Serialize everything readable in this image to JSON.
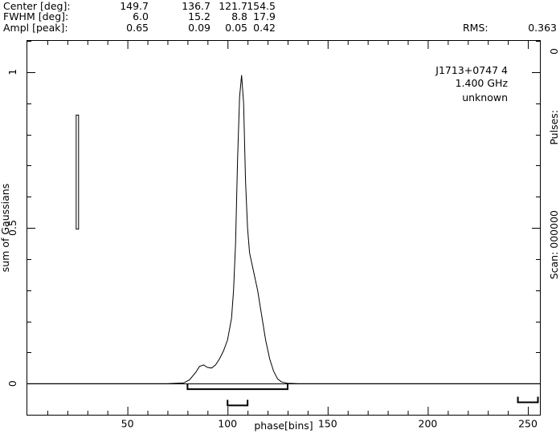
{
  "header": {
    "rows": [
      {
        "label": "Center [deg]:",
        "values": [
          "149.7",
          "136.7",
          "121.7",
          "154.5"
        ]
      },
      {
        "label": "FWHM  [deg]:",
        "values": [
          "6.0",
          "15.2",
          "8.8",
          "17.9"
        ]
      },
      {
        "label": "Ampl  [peak]:",
        "values": [
          "0.65",
          "0.09",
          "0.05",
          "0.42"
        ]
      }
    ],
    "rms_label": "RMS:",
    "rms_value": "0.363"
  },
  "annotation": {
    "lines": [
      "J1713+0747 4",
      "1.400 GHz",
      "unknown"
    ]
  },
  "right_label": {
    "pulses": "Pulses:",
    "pulses_value": "0",
    "scan": "Scan: 000000"
  },
  "chart_data": {
    "type": "line",
    "xlabel": "phase[bins]",
    "ylabel": "sum of Gaussians",
    "xlim": [
      0,
      256
    ],
    "ylim": [
      -0.1,
      1.1
    ],
    "xticks": [
      50,
      100,
      150,
      200,
      250
    ],
    "yticks": [
      0,
      0.5,
      1
    ],
    "ytick_labels": [
      "0",
      "0.5",
      "1"
    ],
    "series": [
      {
        "x": [
          0,
          70,
          78,
          81,
          84,
          86,
          88,
          90,
          92,
          94,
          96,
          98,
          100,
          102,
          103,
          104,
          105,
          106,
          107,
          108,
          109,
          110,
          111,
          113,
          115,
          117,
          119,
          121,
          123,
          125,
          127,
          130,
          135,
          256
        ],
        "y": [
          0,
          0,
          0.002,
          0.012,
          0.035,
          0.055,
          0.06,
          0.052,
          0.05,
          0.06,
          0.08,
          0.105,
          0.14,
          0.21,
          0.3,
          0.45,
          0.72,
          0.92,
          0.99,
          0.9,
          0.65,
          0.5,
          0.42,
          0.36,
          0.3,
          0.22,
          0.14,
          0.08,
          0.04,
          0.015,
          0.005,
          0.001,
          0,
          0
        ]
      }
    ],
    "scale_bar": {
      "x": 25,
      "y_bottom": 0.496,
      "y_top": 0.862
    },
    "brackets": [
      {
        "x_start": 80,
        "x_end": 130,
        "y": -0.018
      },
      {
        "x_start": 100,
        "x_end": 110,
        "y": -0.07
      },
      {
        "x_start": 245,
        "x_end": 255,
        "y": -0.06
      }
    ]
  }
}
